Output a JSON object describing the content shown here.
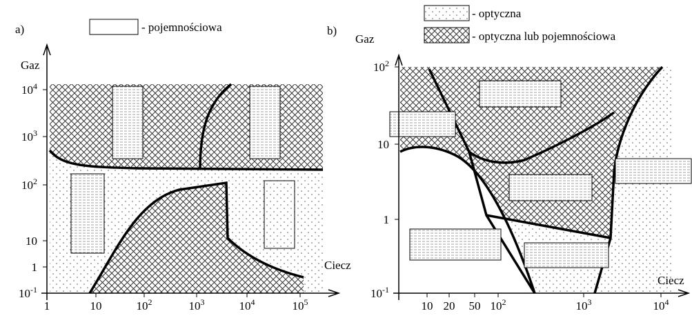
{
  "panel_a": {
    "label": "a)",
    "legend": {
      "text": "- pojemnościowa"
    },
    "y_axis_label": "Gaz",
    "x_axis_label": "Ciecz",
    "xticks": [
      {
        "base": "1"
      },
      {
        "base": "10"
      },
      {
        "base": "10",
        "exp": "2"
      },
      {
        "base": "10",
        "exp": "3"
      },
      {
        "base": "10",
        "exp": "4"
      },
      {
        "base": "10",
        "exp": "5"
      }
    ],
    "yticks": [
      {
        "base": "10",
        "exp": "-1"
      },
      {
        "base": "1"
      },
      {
        "base": "10"
      },
      {
        "base": "10",
        "exp": "2"
      },
      {
        "base": "10",
        "exp": "3"
      },
      {
        "base": "10",
        "exp": "4"
      }
    ]
  },
  "panel_b": {
    "label": "b)",
    "legend": [
      {
        "text": "- optyczna"
      },
      {
        "text": "- optyczna lub pojemnościowa"
      }
    ],
    "y_axis_label": "Gaz",
    "x_axis_label": "Ciecz",
    "xticks": [
      {
        "base": "10"
      },
      {
        "base": "20"
      },
      {
        "base": "50"
      },
      {
        "base": "10",
        "exp": "2"
      },
      {
        "base": "10",
        "exp": "3"
      },
      {
        "base": "10",
        "exp": "4"
      }
    ],
    "yticks": [
      {
        "base": "10",
        "exp": "-1"
      },
      {
        "base": "1"
      },
      {
        "base": "10"
      },
      {
        "base": "10",
        "exp": "2"
      }
    ]
  }
}
